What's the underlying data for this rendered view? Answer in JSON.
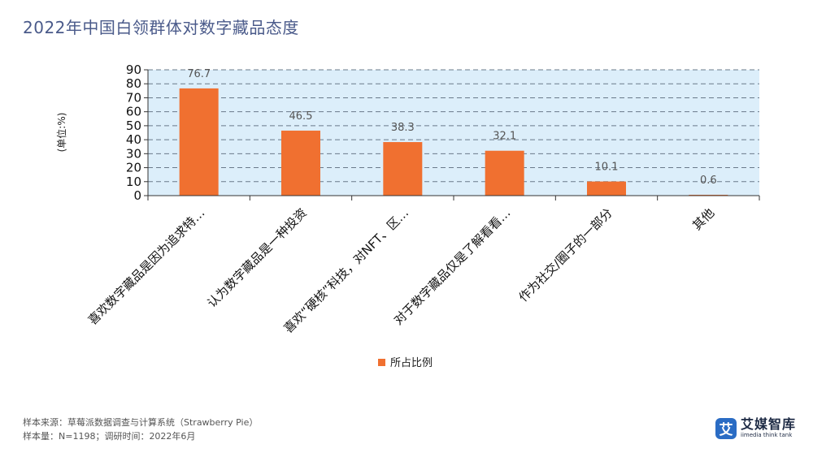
{
  "title": "2022年中国白领群体对数字藏品态度",
  "footer": {
    "line1": "样本来源：草莓派数据调查与计算系统（Strawberry Pie）",
    "line2": "样本量：N=1198；调研时间：2022年6月"
  },
  "logo": {
    "mark": "艾",
    "name": "艾媒智库",
    "tagline": "iimedia think tank"
  },
  "chart_data": {
    "type": "bar",
    "title": "",
    "ylabel": "(单位:%)",
    "xlabel": "",
    "ylim": [
      0,
      90
    ],
    "yticks": [
      0,
      10,
      20,
      30,
      40,
      50,
      60,
      70,
      80,
      90
    ],
    "grid": true,
    "legend_position": "bottom",
    "categories": [
      "喜欢数字藏品是因为追求特…",
      "认为数字藏品是一种投资",
      "喜欢“硬核”科技，对NFT、区…",
      "对于数字藏品仅是了解看看…",
      "作为社交/圈子的一部分",
      "其他"
    ],
    "series": [
      {
        "name": "所占比例",
        "color": "#f07030",
        "values": [
          76.7,
          46.5,
          38.3,
          32.1,
          10.1,
          0.6
        ]
      }
    ],
    "colors": {
      "bar": "#f07030",
      "plot_bg": "#dceefa",
      "grid": "#6a7a8a",
      "axis": "#333333",
      "label": "#555555"
    }
  }
}
